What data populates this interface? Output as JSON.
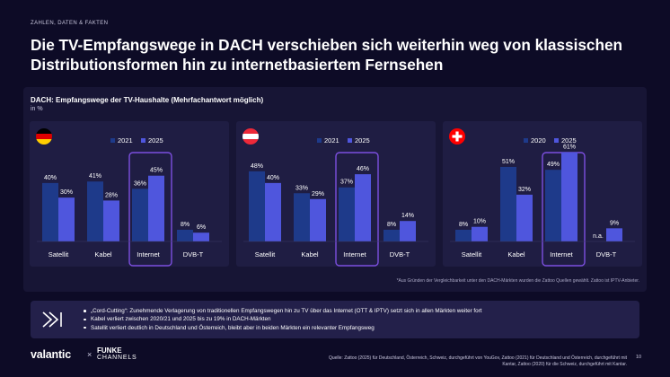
{
  "section_tag": "ZAHLEN, DATEN & FAKTEN",
  "title": "Die TV-Empfangswege in DACH verschieben sich weiterhin weg von klassischen Distributionsformen hin zu internetbasiertem Fernsehen",
  "panel": {
    "title": "DACH: Empfangswege der TV-Haushalte (Mehrfachantwort möglich)",
    "unit": "in %"
  },
  "colors": {
    "dark_bar": "#1e3a8a",
    "light_bar": "#4f56dd",
    "highlight": "#7c4fe0"
  },
  "chart_data": [
    {
      "type": "bar",
      "flag": "germany-flag-icon",
      "categories": [
        "Satellit",
        "Kabel",
        "Internet",
        "DVB-T"
      ],
      "series": [
        {
          "name": "2021",
          "values": [
            40,
            41,
            36,
            8
          ],
          "labels": [
            "40%",
            "41%",
            "36%",
            "8%"
          ]
        },
        {
          "name": "2025",
          "values": [
            30,
            28,
            45,
            6
          ],
          "labels": [
            "30%",
            "28%",
            "45%",
            "6%"
          ]
        }
      ],
      "highlight_category": "Internet",
      "ylim": [
        0,
        70
      ]
    },
    {
      "type": "bar",
      "flag": "austria-flag-icon",
      "categories": [
        "Satellit",
        "Kabel",
        "Internet",
        "DVB-T"
      ],
      "series": [
        {
          "name": "2021",
          "values": [
            48,
            33,
            37,
            8
          ],
          "labels": [
            "48%",
            "33%",
            "37%",
            "8%"
          ]
        },
        {
          "name": "2025",
          "values": [
            40,
            29,
            46,
            14
          ],
          "labels": [
            "40%",
            "29%",
            "46%",
            "14%"
          ]
        }
      ],
      "highlight_category": "Internet",
      "ylim": [
        0,
        70
      ]
    },
    {
      "type": "bar",
      "flag": "switzerland-flag-icon",
      "categories": [
        "Satellit",
        "Kabel",
        "Internet",
        "DVB-T"
      ],
      "series": [
        {
          "name": "2020",
          "values": [
            8,
            51,
            49,
            0
          ],
          "labels": [
            "8%",
            "51%",
            "49%",
            "n.a."
          ]
        },
        {
          "name": "2025",
          "values": [
            10,
            32,
            61,
            9
          ],
          "labels": [
            "10%",
            "32%",
            "61%",
            "9%"
          ]
        }
      ],
      "highlight_category": "Internet",
      "ylim": [
        0,
        70
      ]
    }
  ],
  "footnote": "*Aus Gründen der Vergleichbarkeit unter den DACH-Märkten wurden die Zattoo Quellen gewählt. Zattoo ist IPTV-Anbieter.",
  "summary": {
    "bullets": [
      "„Cord-Cutting“: Zunehmende Verlagerung von traditionellen Empfangswegen hin zu TV über das Internet (OTT & IPTV) setzt sich in allen Märkten weiter fort",
      "Kabel verliert zwischen 2020/21 und 2025 bis zu 19% in DACH-Märkten",
      "Satellit verliert deutlich in Deutschland und Österreich, bleibt aber in beiden Märkten ein relevanter Empfangsweg"
    ]
  },
  "footer": {
    "logo_valantic": "valantic",
    "logo_x": "×",
    "logo_funke": "FUNKE",
    "logo_channels": "CHANNELS",
    "page_number": "10",
    "source": "Quelle: Zattoo (2025) für Deutschland, Österreich, Schweiz, durchgeführt von YouGov, Zattoo (2021) für Deutschland und Österreich, durchgeführt mit Kantar, Zattoo (2020) für die Schweiz, durchgeführt mit Kantar."
  }
}
